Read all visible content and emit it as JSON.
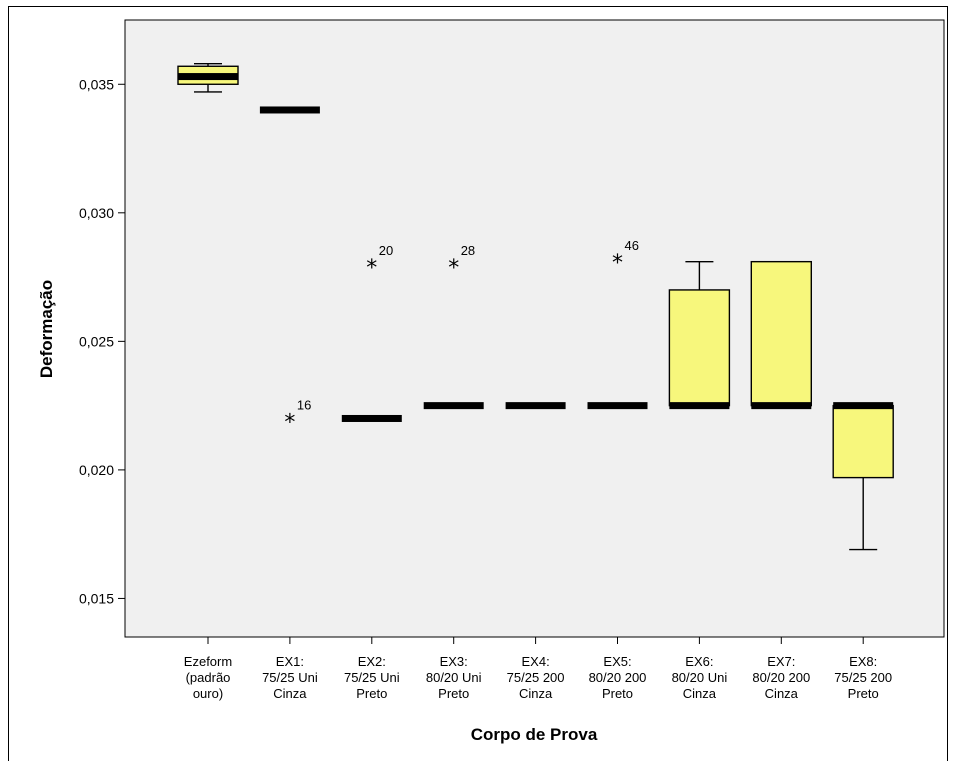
{
  "chart_data": {
    "type": "boxplot",
    "title": "",
    "xlabel": "Corpo de Prova",
    "ylabel": "Deformação",
    "ylim": [
      0.0135,
      0.0375
    ],
    "yticks": [
      0.015,
      0.02,
      0.025,
      0.03,
      0.035
    ],
    "ytick_labels": [
      "0,015",
      "0,020",
      "0,025",
      "0,030",
      "0,035"
    ],
    "colors": {
      "plot_bg": "#f0f0f0",
      "box_fill": "#f7f77c",
      "median": "#000000"
    },
    "grid": false,
    "legend": "none",
    "categories": [
      {
        "lines": [
          "Ezeform",
          "(padrão",
          "ouro)"
        ],
        "whisker_low": 0.0347,
        "q1": 0.035,
        "median": 0.0353,
        "q3": 0.0357,
        "whisker_high": 0.0358,
        "outliers": []
      },
      {
        "lines": [
          "EX1:",
          "75/25 Uni",
          "Cinza"
        ],
        "whisker_low": 0.034,
        "q1": 0.034,
        "median": 0.034,
        "q3": 0.034,
        "whisker_high": 0.034,
        "outliers": [
          {
            "value": 0.022,
            "label": "16"
          }
        ]
      },
      {
        "lines": [
          "EX2:",
          "75/25 Uni",
          "Preto"
        ],
        "whisker_low": 0.022,
        "q1": 0.022,
        "median": 0.022,
        "q3": 0.022,
        "whisker_high": 0.022,
        "outliers": [
          {
            "value": 0.028,
            "label": "20"
          }
        ]
      },
      {
        "lines": [
          "EX3:",
          "80/20 Uni",
          "Preto"
        ],
        "whisker_low": 0.0225,
        "q1": 0.0225,
        "median": 0.0225,
        "q3": 0.0225,
        "whisker_high": 0.0225,
        "outliers": [
          {
            "value": 0.028,
            "label": "28"
          }
        ]
      },
      {
        "lines": [
          "EX4:",
          "75/25 200",
          "Cinza"
        ],
        "whisker_low": 0.0225,
        "q1": 0.0225,
        "median": 0.0225,
        "q3": 0.0225,
        "whisker_high": 0.0225,
        "outliers": []
      },
      {
        "lines": [
          "EX5:",
          "80/20 200",
          "Preto"
        ],
        "whisker_low": 0.0225,
        "q1": 0.0225,
        "median": 0.0225,
        "q3": 0.0225,
        "whisker_high": 0.0225,
        "outliers": [
          {
            "value": 0.0282,
            "label": "46"
          }
        ]
      },
      {
        "lines": [
          "EX6:",
          "80/20 Uni",
          "Cinza"
        ],
        "whisker_low": 0.0225,
        "q1": 0.0225,
        "median": 0.0225,
        "q3": 0.027,
        "whisker_high": 0.0281,
        "outliers": []
      },
      {
        "lines": [
          "EX7:",
          "80/20 200",
          "Cinza"
        ],
        "whisker_low": 0.0225,
        "q1": 0.0225,
        "median": 0.0225,
        "q3": 0.0281,
        "whisker_high": 0.0281,
        "outliers": []
      },
      {
        "lines": [
          "EX8:",
          "75/25 200",
          "Preto"
        ],
        "whisker_low": 0.0169,
        "q1": 0.0197,
        "median": 0.0225,
        "q3": 0.0225,
        "whisker_high": 0.0225,
        "outliers": []
      }
    ]
  }
}
